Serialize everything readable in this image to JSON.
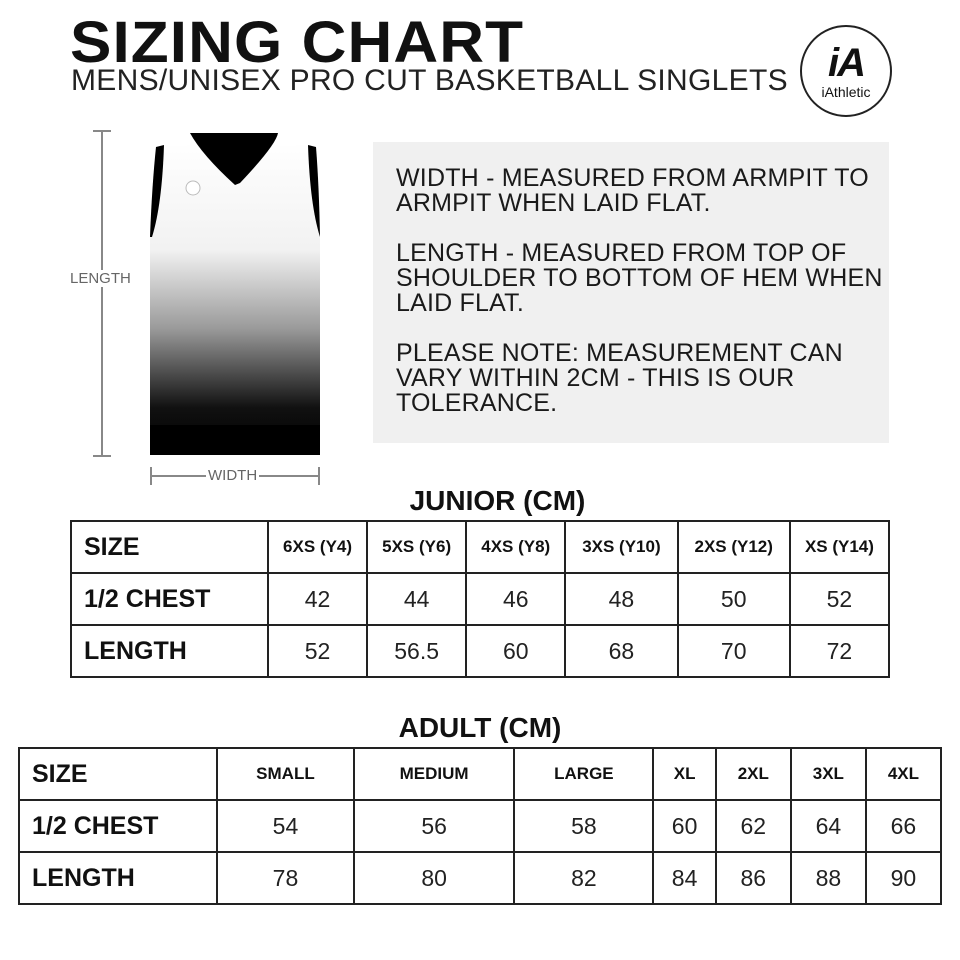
{
  "header": {
    "title": "SIZING CHART",
    "subtitle": "MENS/UNISEX PRO CUT BASKETBALL SINGLETS",
    "logo_mark": "iA",
    "logo_word": "iAthletic"
  },
  "diagram": {
    "length_label": "LENGTH",
    "width_label": "WIDTH"
  },
  "info": {
    "width_note": "WIDTH - MEASURED FROM ARMPIT TO ARMPIT WHEN LAID FLAT.",
    "length_note": "LENGTH - MEASURED FROM TOP OF SHOULDER TO BOTTOM OF HEM WHEN LAID FLAT.",
    "tolerance_note": "PLEASE NOTE: MEASUREMENT CAN VARY WITHIN 2CM - THIS IS OUR TOLERANCE."
  },
  "junior": {
    "title": "JUNIOR (CM)",
    "headers": [
      "SIZE",
      "6XS (Y4)",
      "5XS (Y6)",
      "4XS (Y8)",
      "3XS (Y10)",
      "2XS (Y12)",
      "XS (Y14)"
    ],
    "rows": [
      {
        "label": "1/2 CHEST",
        "values": [
          "42",
          "44",
          "46",
          "48",
          "50",
          "52"
        ]
      },
      {
        "label": "LENGTH",
        "values": [
          "52",
          "56.5",
          "60",
          "68",
          "70",
          "72"
        ]
      }
    ]
  },
  "adult": {
    "title": "ADULT (CM)",
    "headers": [
      "SIZE",
      "SMALL",
      "MEDIUM",
      "LARGE",
      "XL",
      "2XL",
      "3XL",
      "4XL"
    ],
    "rows": [
      {
        "label": "1/2 CHEST",
        "values": [
          "54",
          "56",
          "58",
          "60",
          "62",
          "64",
          "66"
        ]
      },
      {
        "label": "LENGTH",
        "values": [
          "78",
          "80",
          "82",
          "84",
          "86",
          "88",
          "90"
        ]
      }
    ]
  }
}
